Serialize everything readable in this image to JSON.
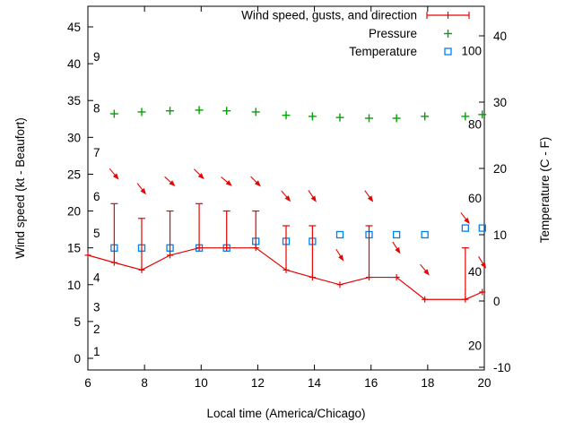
{
  "figure": {
    "background": "#ffffff",
    "colors": {
      "wind": "#e60300",
      "pressure": "#00a400",
      "temperature": "#0080f0",
      "axis": "#000000"
    },
    "legend": [
      {
        "label": "Wind speed, gusts, and direction",
        "series": "wind",
        "marker": "errorbar-line"
      },
      {
        "label": "Pressure",
        "series": "pressure",
        "marker": "plus"
      },
      {
        "label": "Temperature",
        "series": "temperature",
        "marker": "open-square"
      }
    ]
  },
  "chart_data": {
    "type": "line",
    "x_label": "Local time (America/Chicago)",
    "y_left_label": "Wind speed (kt - Beaufort)",
    "y_right_label": "Temperature (C - F)",
    "x_range": [
      6,
      20
    ],
    "x_ticks": [
      6,
      8,
      10,
      12,
      14,
      16,
      18,
      20
    ],
    "y_left_ticks": [
      0,
      5,
      10,
      15,
      20,
      25,
      30,
      35,
      40,
      45
    ],
    "y_left_range_kt": [
      0,
      45
    ],
    "y_right_ticks": [
      -10,
      0,
      10,
      20,
      30,
      40
    ],
    "y_right_range_c": [
      -10,
      40
    ],
    "beaufort_labels": [
      {
        "beaufort": 1,
        "kt": 1
      },
      {
        "beaufort": 2,
        "kt": 4
      },
      {
        "beaufort": 3,
        "kt": 7
      },
      {
        "beaufort": 4,
        "kt": 11
      },
      {
        "beaufort": 5,
        "kt": 17
      },
      {
        "beaufort": 6,
        "kt": 22
      },
      {
        "beaufort": 7,
        "kt": 28
      },
      {
        "beaufort": 8,
        "kt": 34
      },
      {
        "beaufort": 9,
        "kt": 41
      }
    ],
    "fahrenheit_labels": [
      20,
      40,
      60,
      80,
      100
    ],
    "x_hours": [
      6.0,
      6.93,
      7.9,
      8.9,
      9.93,
      10.9,
      11.93,
      13.0,
      13.93,
      14.9,
      15.93,
      16.9,
      17.9,
      19.33,
      19.93
    ],
    "series": [
      {
        "name": "Wind speed, gusts, and direction",
        "type": "line+errorbars+vectors",
        "wind_kt": [
          14,
          13,
          12,
          14,
          15,
          15,
          15,
          12,
          11,
          10,
          11,
          11,
          8,
          8,
          9
        ],
        "gust_kt": [
          null,
          21,
          19,
          20,
          21,
          20,
          20,
          18,
          18,
          null,
          18,
          null,
          null,
          15,
          null
        ],
        "arrow_kt": [
          null,
          25,
          23,
          24,
          25,
          24,
          24,
          22,
          22,
          14,
          22,
          15,
          12,
          19,
          13
        ],
        "arrow_angle_deg": [
          null,
          50,
          52,
          42,
          45,
          40,
          45,
          50,
          56,
          58,
          54,
          57,
          50,
          52,
          58
        ]
      },
      {
        "name": "Pressure",
        "type": "points",
        "marker": "plus",
        "values_left_axis_units": [
          null,
          33.2,
          33.45,
          33.6,
          33.7,
          33.6,
          33.45,
          33.0,
          32.85,
          32.7,
          32.6,
          32.6,
          32.85,
          32.85,
          33.1
        ]
      },
      {
        "name": "Temperature",
        "type": "points",
        "marker": "open-square",
        "values_c": [
          null,
          8,
          8,
          8,
          8,
          8,
          9,
          9,
          9,
          10,
          10,
          10,
          10,
          11,
          11
        ]
      }
    ]
  }
}
